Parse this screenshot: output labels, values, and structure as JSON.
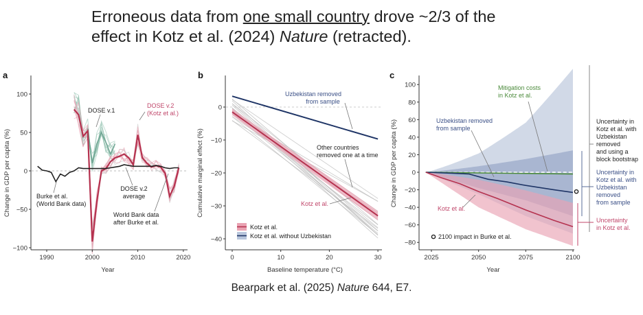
{
  "title": {
    "line1_a": "Erroneous data from ",
    "line1_u": "one small country",
    "line1_b": " drove ~2/3 of the",
    "line2_a": "effect in Kotz et al. (2024) ",
    "line2_i": "Nature",
    "line2_b": " (retracted)."
  },
  "caption": {
    "a": "Bearpark et al. (2025) ",
    "i": "Nature",
    "b": " 644, E7."
  },
  "colors": {
    "kotz": "#b5324f",
    "kotz_band": "#e9a3b3",
    "dose_v1": "#8fbfae",
    "uzbek": "#1f3566",
    "uzbek_text": "#3a4f86",
    "mitigation": "#4a8a3a",
    "burke": "#222222"
  },
  "chart_data": [
    {
      "panel": "a",
      "type": "line",
      "xlabel": "Year",
      "ylabel": "Change in GDP per capita (%)",
      "xlim": [
        1986,
        2021
      ],
      "ylim": [
        -102,
        122
      ],
      "xticks": [
        1990,
        2000,
        2010,
        2020
      ],
      "yticks": [
        100,
        50,
        0,
        -50,
        -100
      ],
      "series": [
        {
          "name": "Burke et al. (World Bank data)",
          "x": [
            1988,
            1989,
            1990,
            1991,
            1992,
            1993,
            1994,
            1995,
            1996,
            1997,
            1998,
            1999,
            2000,
            2001,
            2002,
            2003,
            2004,
            2005,
            2006,
            2007,
            2008,
            2009,
            2010,
            2011,
            2012,
            2013,
            2014,
            2015,
            2016,
            2017,
            2018,
            2019
          ],
          "y": [
            6,
            1,
            0,
            -2,
            -14,
            -4,
            -7,
            -2,
            0,
            4,
            3,
            3,
            3,
            3,
            3,
            3,
            4,
            5,
            6,
            8,
            7,
            6,
            6,
            6,
            6,
            6,
            7,
            6,
            4,
            3,
            4,
            4
          ]
        },
        {
          "name": "DOSE v.2 average",
          "x": [
            1996,
            1997,
            1998,
            1999,
            2000,
            2001,
            2002,
            2003,
            2004,
            2005,
            2006,
            2007,
            2008,
            2009,
            2010,
            2011,
            2012,
            2013,
            2014,
            2015,
            2016,
            2017,
            2018,
            2019
          ],
          "y": [
            80,
            73,
            45,
            52,
            -92,
            -40,
            0,
            3,
            12,
            17,
            19,
            22,
            17,
            8,
            47,
            17,
            10,
            5,
            7,
            5,
            -3,
            -33,
            -20,
            4
          ]
        },
        {
          "name": "DOSE v.1",
          "x": [
            1996,
            1997,
            1998,
            1999,
            2000,
            2001,
            2002,
            2003,
            2004,
            2005
          ],
          "y": [
            90,
            85,
            45,
            55,
            10,
            35,
            50,
            37,
            22,
            35
          ]
        }
      ],
      "annotations": {
        "dose_v1": "DOSE v.1",
        "dose_v2_1": "DOSE v.2",
        "dose_v2_2": "(Kotz et al.)",
        "burke_1": "Burke et al.",
        "burke_2": "(World Bank data)",
        "avg_1": "DOSE v.2",
        "avg_2": "average",
        "wb_1": "World Bank data",
        "wb_2": "after Burke et al."
      }
    },
    {
      "panel": "b",
      "type": "line",
      "xlabel": "Baseline temperature (°C)",
      "ylabel": "Cumulative marginal effect (%)",
      "xlim": [
        -1.5,
        31
      ],
      "ylim": [
        -43,
        8
      ],
      "xticks": [
        0,
        10,
        20,
        30
      ],
      "yticks": [
        0,
        -10,
        -20,
        -30,
        -40
      ],
      "series": [
        {
          "name": "Kotz et al.",
          "x": [
            0,
            30
          ],
          "y": [
            -1.5,
            -33
          ]
        },
        {
          "name": "Kotz et al. without Uzbekistan",
          "x": [
            0,
            30
          ],
          "y": [
            3.3,
            -9.7
          ]
        }
      ],
      "legend": [
        "Kotz et al.",
        "Kotz et al. without Uzbekistan"
      ],
      "legend_position": "bottom-left",
      "annotations": {
        "uz_1": "Uzbekistan removed",
        "uz_2": "from sample",
        "oc_1": "Other countries",
        "oc_2": "removed one at a time",
        "kotz": "Kotz et al."
      }
    },
    {
      "panel": "c",
      "type": "area",
      "xlabel": "Year",
      "ylabel": "Change in GDP per capita (%)",
      "xlim": [
        2018,
        2102
      ],
      "ylim": [
        -88,
        118
      ],
      "xticks": [
        2025,
        2050,
        2075,
        2100
      ],
      "yticks": [
        100,
        80,
        60,
        40,
        20,
        0,
        -20,
        -40,
        -60,
        -80
      ],
      "series": [
        {
          "name": "Kotz et al.",
          "x": [
            2022,
            2030,
            2040,
            2050,
            2060,
            2075,
            2090,
            2100
          ],
          "y": [
            0,
            -6,
            -13,
            -22,
            -30,
            -43,
            -55,
            -62
          ]
        },
        {
          "name": "Uzbekistan removed from sample",
          "x": [
            2022,
            2035,
            2045,
            2055,
            2065,
            2075,
            2090,
            2100
          ],
          "y": [
            0,
            -1,
            -2,
            -8,
            -11,
            -15,
            -20,
            -23
          ]
        },
        {
          "name": "Mitigation costs in Kotz et al.",
          "x": [
            2022,
            2100
          ],
          "y": [
            0,
            -2
          ]
        }
      ],
      "bands": [
        {
          "name": "Uncertainty in Kotz et al. with Uzbekistan removed and using a block bootstrap",
          "x": [
            2022,
            2050,
            2075,
            2100
          ],
          "upper": [
            0,
            25,
            60,
            118
          ],
          "lower": [
            0,
            -25,
            -50,
            -70
          ]
        },
        {
          "name": "Uncertainty in Kotz et al. with Uzbekistan removed from sample",
          "x": [
            2022,
            2050,
            2075,
            2100
          ],
          "upper": [
            0,
            8,
            16,
            25
          ],
          "lower": [
            0,
            -18,
            -32,
            -50
          ]
        },
        {
          "name": "Uncertainty in Kotz et al.",
          "x": [
            2022,
            2050,
            2075,
            2100
          ],
          "upper": [
            0,
            -10,
            -22,
            -35
          ],
          "lower": [
            0,
            -40,
            -65,
            -84
          ]
        }
      ],
      "burke_2100": -22,
      "annotations": {
        "mit_1": "Mitigation costs",
        "mit_2": "in Kotz et al.",
        "uz_1": "Uzbekistan removed",
        "uz_2": "from sample",
        "kotz": "Kotz et al.",
        "burke": "2100 impact in Burke et al.",
        "bb": [
          "Uncertainty in",
          "Kotz et al. with",
          "Uzbekistan",
          "removed",
          "and using a",
          "block bootstrap"
        ],
        "uzu": [
          "Uncertainty in",
          "Kotz et al. with",
          "Uzbekistan",
          "removed",
          "from sample"
        ],
        "ku": [
          "Uncertainty",
          "in Kotz et al."
        ]
      }
    }
  ],
  "panel_labels": [
    "a",
    "b",
    "c"
  ]
}
